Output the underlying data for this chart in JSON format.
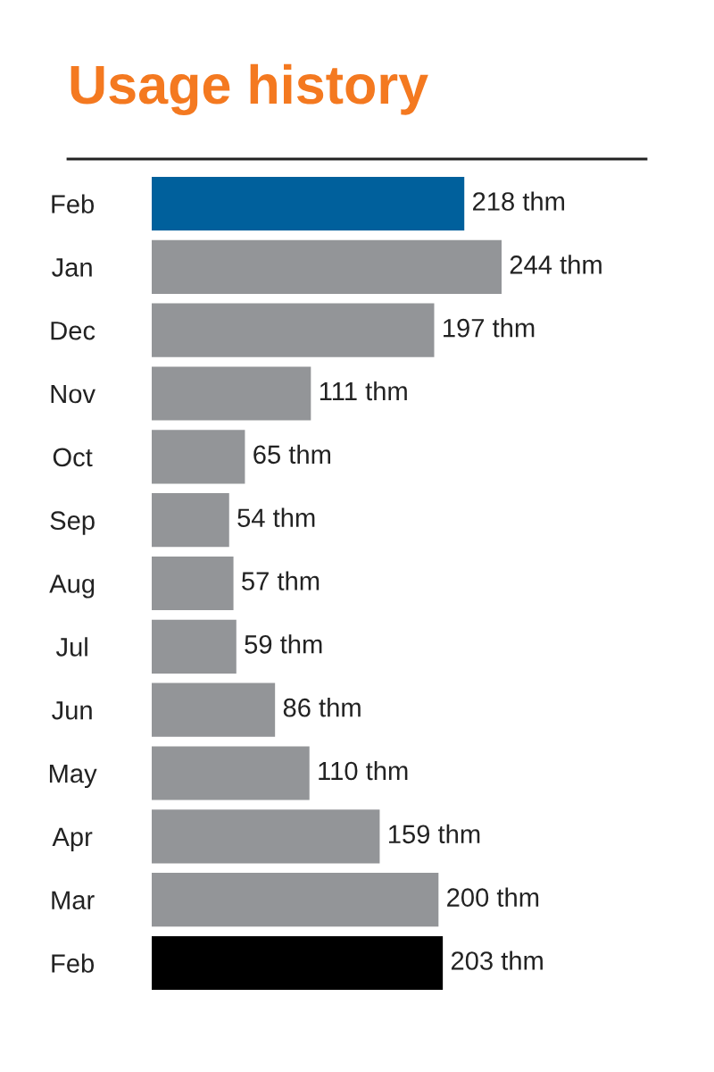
{
  "chart_data": {
    "type": "bar",
    "orientation": "horizontal",
    "title": "Usage history",
    "categories": [
      "Feb",
      "Jan",
      "Dec",
      "Nov",
      "Oct",
      "Sep",
      "Aug",
      "Jul",
      "Jun",
      "May",
      "Apr",
      "Mar",
      "Feb"
    ],
    "values": [
      218,
      244,
      197,
      111,
      65,
      54,
      57,
      59,
      86,
      110,
      159,
      200,
      203
    ],
    "value_labels": [
      "218 thm",
      "244 thm",
      "197 thm",
      "111 thm",
      "65 thm",
      "54 thm",
      "57 thm",
      "59 thm",
      "86 thm",
      "110 thm",
      "159 thm",
      "200 thm",
      "203 thm"
    ],
    "colors": [
      "#00609c",
      "#939598",
      "#939598",
      "#939598",
      "#939598",
      "#939598",
      "#939598",
      "#939598",
      "#939598",
      "#939598",
      "#939598",
      "#939598",
      "#000000"
    ],
    "grid": false,
    "legend": false
  }
}
